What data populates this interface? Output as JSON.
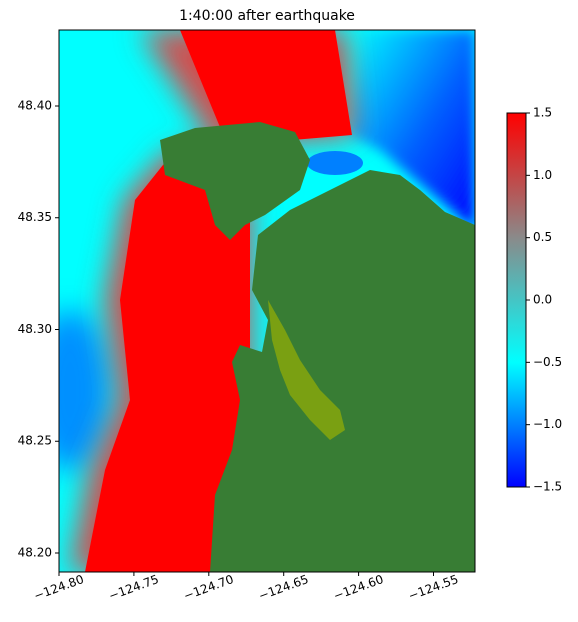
{
  "chart_data": {
    "type": "map",
    "title": "1:40:00 after earthquake",
    "xlim": [
      -124.8,
      -124.5223
    ],
    "ylim": [
      48.1915,
      48.434
    ],
    "xticks": [
      {
        "value": -124.8,
        "label": "−124.80"
      },
      {
        "value": -124.75,
        "label": "−124.75"
      },
      {
        "value": -124.7,
        "label": "−124.70"
      },
      {
        "value": -124.65,
        "label": "−124.65"
      },
      {
        "value": -124.6,
        "label": "−124.60"
      },
      {
        "value": -124.55,
        "label": "−124.55"
      }
    ],
    "yticks": [
      {
        "value": 48.2,
        "label": "48.20"
      },
      {
        "value": 48.25,
        "label": "48.25"
      },
      {
        "value": 48.3,
        "label": "48.30"
      },
      {
        "value": 48.35,
        "label": "48.35"
      },
      {
        "value": 48.4,
        "label": "48.40"
      }
    ],
    "colorbar": {
      "lim": [
        -1.5,
        1.5
      ],
      "ticks": [
        {
          "value": -1.5,
          "label": "−1.5"
        },
        {
          "value": -1,
          "label": "−1.0"
        },
        {
          "value": -0.5,
          "label": "−0.5"
        },
        {
          "value": 0,
          "label": "0.0"
        },
        0.5,
        {
          "value": 1,
          "label": "1.0"
        },
        1.5
      ],
      "colors": [
        "#0000ff",
        "#00ffff",
        "#8a8a8a",
        "#ff0000"
      ]
    }
  }
}
